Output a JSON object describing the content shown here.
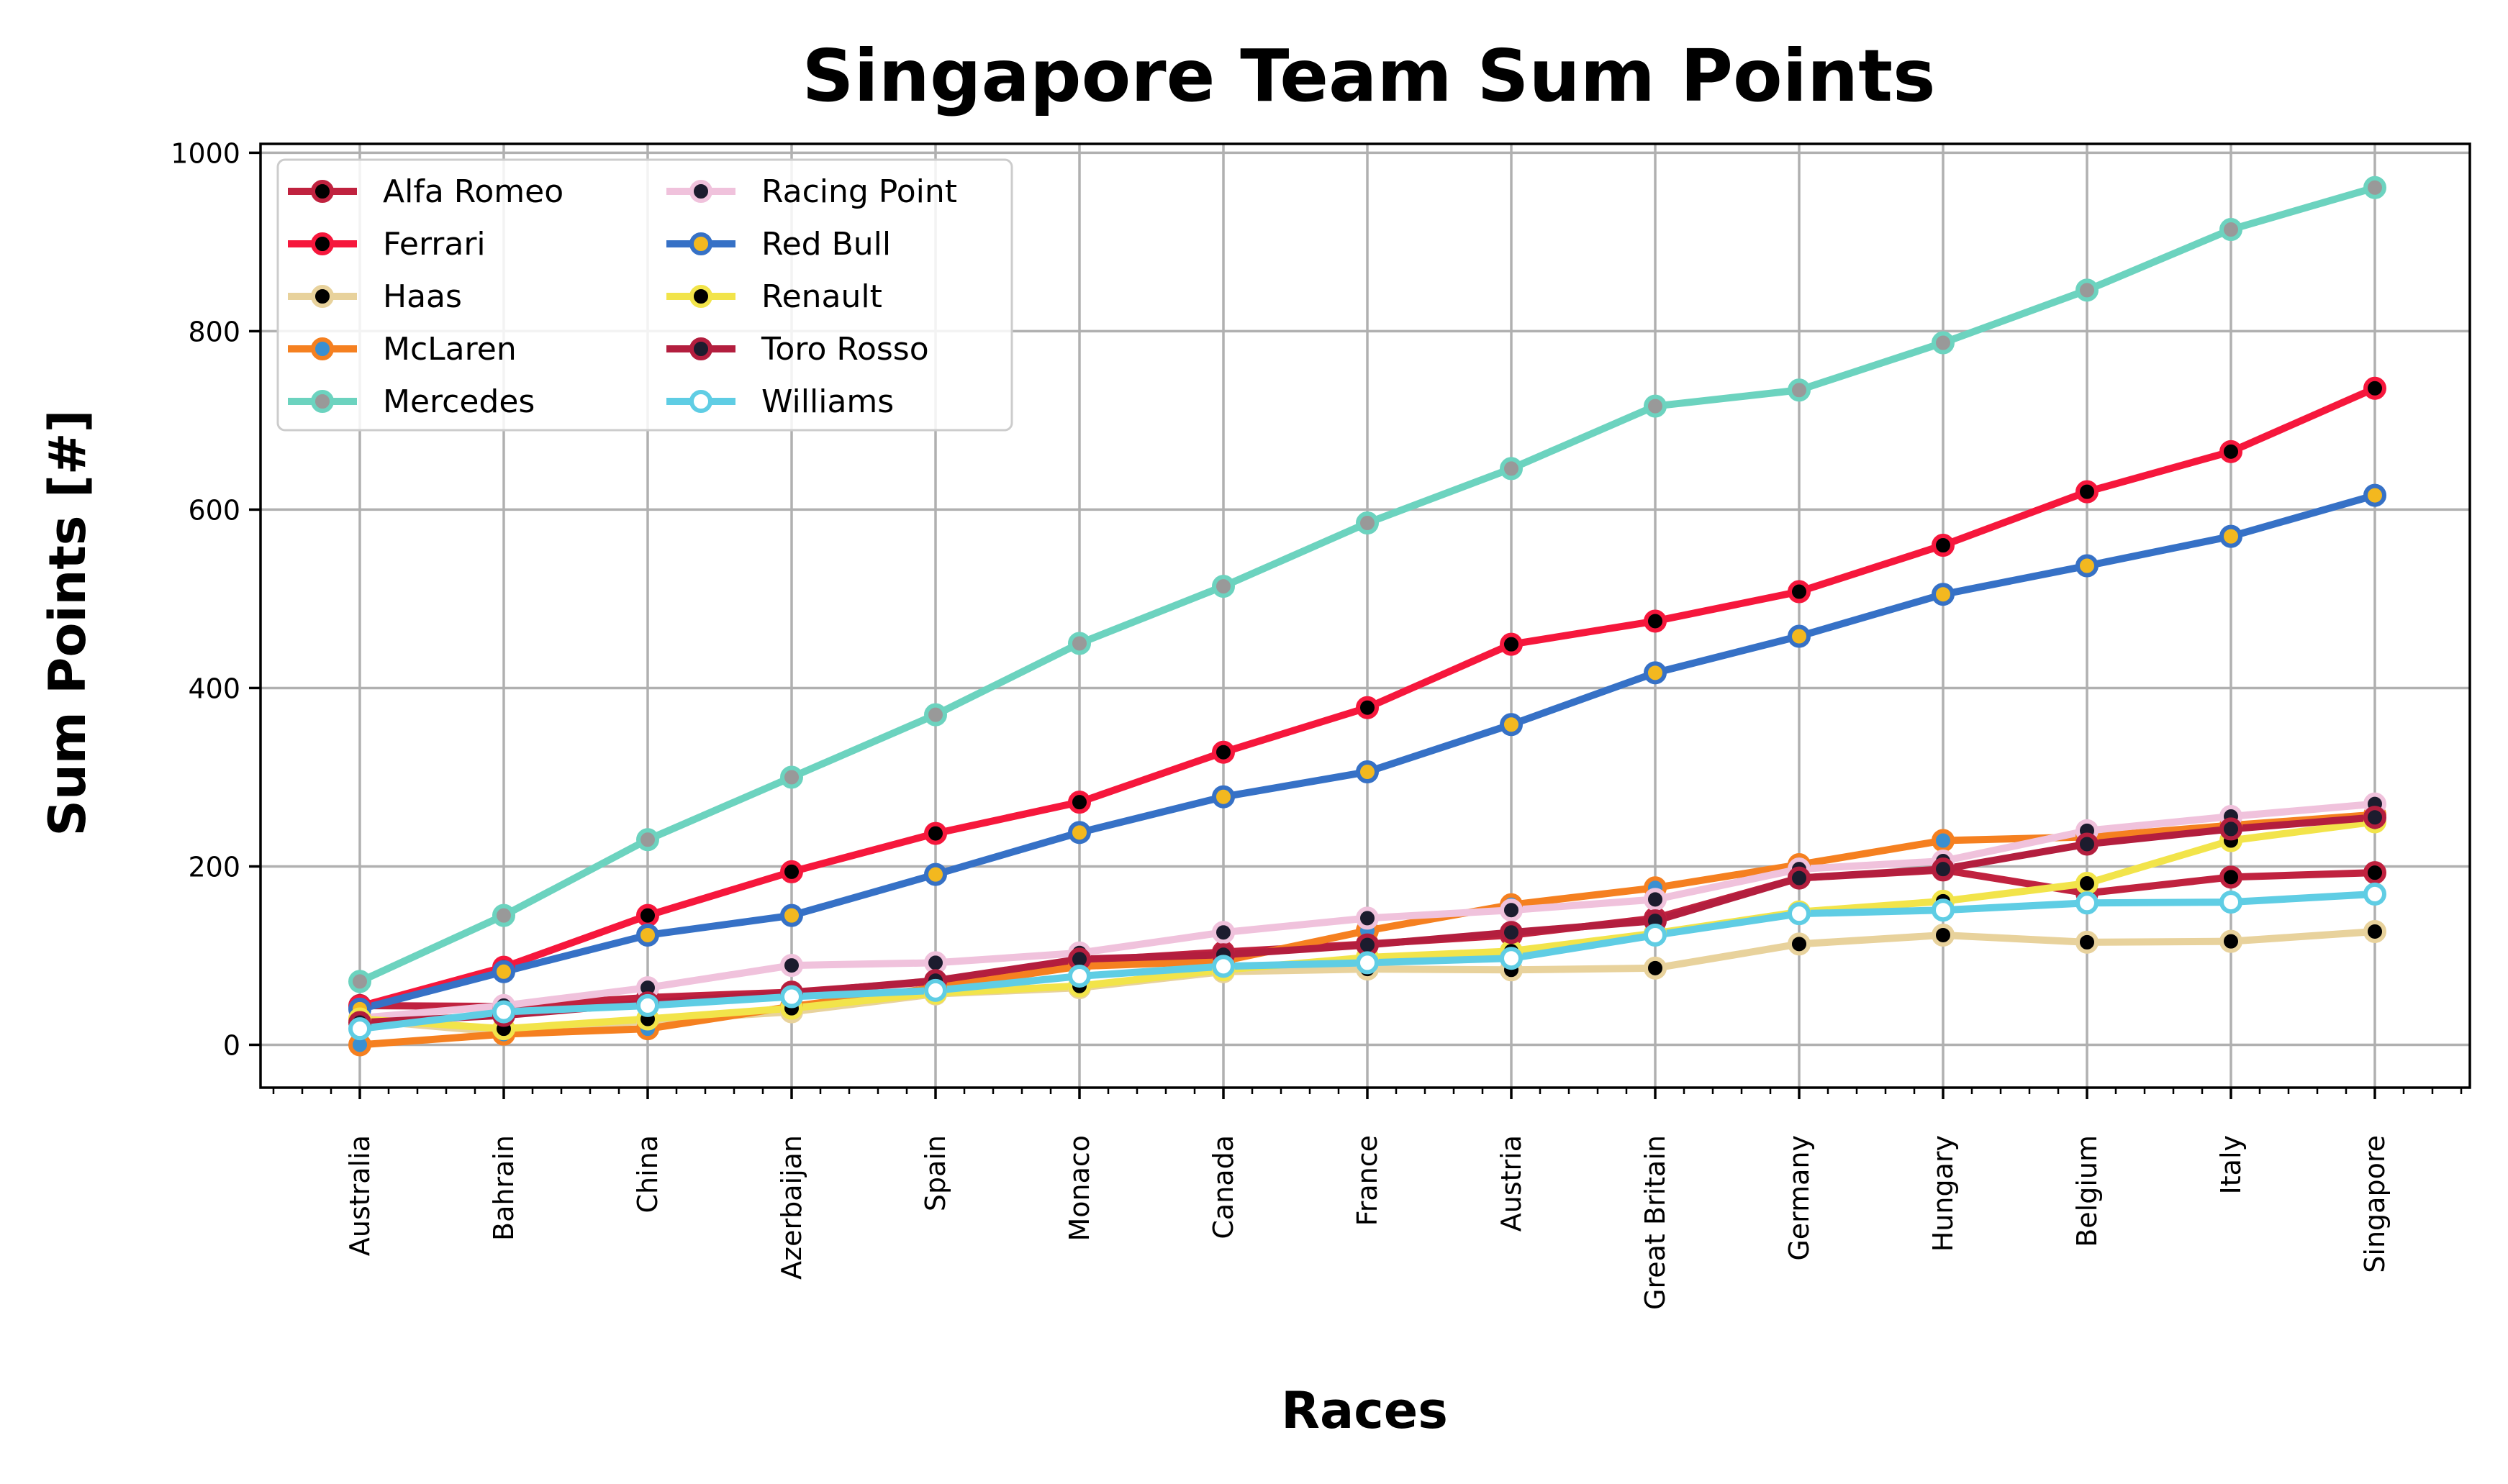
{
  "chart_data": {
    "type": "line",
    "title": "Singapore Team Sum Points",
    "xlabel": "Races",
    "ylabel": "Sum Points [#]",
    "categories": [
      "Australia",
      "Bahrain",
      "China",
      "Azerbaijan",
      "Spain",
      "Monaco",
      "Canada",
      "France",
      "Austria",
      "Great Britain",
      "Germany",
      "Hungary",
      "Belgium",
      "Italy",
      "Singapore"
    ],
    "ylim": [
      -48,
      1010
    ],
    "yticks": [
      0,
      200,
      400,
      600,
      800,
      1000
    ],
    "grid": true,
    "legend_placement": "top-left",
    "legend_columns": 2,
    "series": [
      {
        "name": "Alfa Romeo",
        "color": "#c0223f",
        "marker_fill": "#000000",
        "values": [
          44,
          43,
          53,
          59,
          71,
          94,
          104,
          113,
          123,
          142,
          187,
          196,
          170,
          188,
          193
        ]
      },
      {
        "name": "Ferrari",
        "color": "#f6173c",
        "marker_fill": "#000000",
        "values": [
          43,
          87,
          145,
          194,
          237,
          272,
          328,
          378,
          449,
          475,
          508,
          560,
          620,
          665,
          736
        ]
      },
      {
        "name": "Haas",
        "color": "#e8d29c",
        "marker_fill": "#000000",
        "values": [
          28,
          14,
          27,
          37,
          57,
          64,
          82,
          85,
          84,
          86,
          113,
          123,
          115,
          116,
          127
        ]
      },
      {
        "name": "McLaren",
        "color": "#f58020",
        "marker_fill": "#3a8fd1",
        "values": [
          0,
          12,
          18,
          43,
          64,
          88,
          94,
          128,
          157,
          176,
          202,
          229,
          233,
          246,
          258
        ]
      },
      {
        "name": "Mercedes",
        "color": "#6cd3bf",
        "marker_fill": "#999999",
        "values": [
          71,
          145,
          230,
          300,
          370,
          450,
          514,
          585,
          646,
          716,
          734,
          787,
          846,
          914,
          961
        ]
      },
      {
        "name": "Racing Point",
        "color": "#f0c2dc",
        "marker_fill": "#1c1c2e",
        "values": [
          30,
          44,
          64,
          89,
          92,
          103,
          126,
          142,
          151,
          163,
          197,
          206,
          240,
          256,
          270
        ]
      },
      {
        "name": "Red Bull",
        "color": "#3671c6",
        "marker_fill": "#f3b81f",
        "values": [
          40,
          82,
          123,
          145,
          191,
          238,
          278,
          306,
          359,
          417,
          458,
          505,
          537,
          570,
          616
        ]
      },
      {
        "name": "Renault",
        "color": "#f2e44a",
        "marker_fill": "#000000",
        "values": [
          29,
          18,
          29,
          41,
          58,
          66,
          84,
          98,
          105,
          125,
          149,
          161,
          181,
          229,
          250
        ]
      },
      {
        "name": "Toro Rosso",
        "color": "#b31e3e",
        "marker_fill": "#1c1c2e",
        "values": [
          25,
          33,
          47,
          58,
          72,
          96,
          101,
          112,
          126,
          139,
          187,
          197,
          225,
          242,
          255
        ]
      },
      {
        "name": "Williams",
        "color": "#5fcde4",
        "marker_fill": "#ffffff",
        "values": [
          18,
          37,
          44,
          54,
          61,
          77,
          88,
          92,
          97,
          123,
          147,
          151,
          159,
          160,
          169
        ]
      }
    ]
  }
}
